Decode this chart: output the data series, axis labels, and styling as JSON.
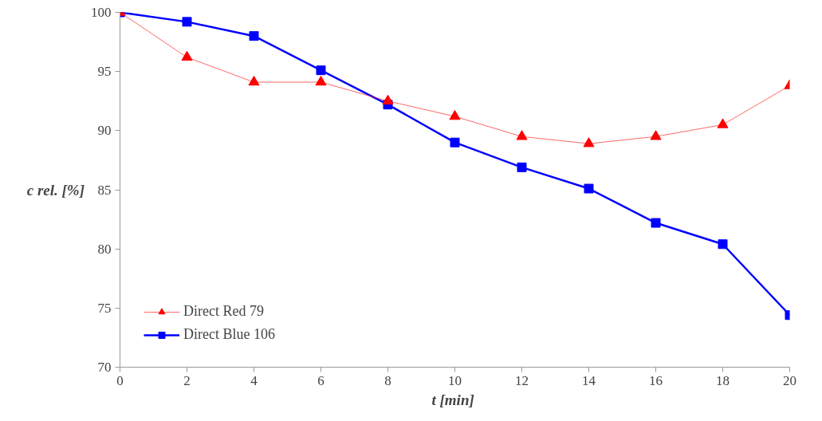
{
  "chart_data": {
    "type": "line",
    "xlabel": "t  [min]",
    "ylabel": "c rel. [%]",
    "x": [
      0,
      2,
      4,
      6,
      8,
      10,
      12,
      14,
      16,
      18,
      20
    ],
    "series": [
      {
        "name": "Direct Red 79",
        "color": "#ff0000",
        "marker": "triangle",
        "values": [
          100,
          96.2,
          94.1,
          94.1,
          92.5,
          91.2,
          89.5,
          88.9,
          89.5,
          90.5,
          93.8
        ]
      },
      {
        "name": "Direct Blue 106",
        "color": "#0000ff",
        "marker": "square",
        "values": [
          100,
          99.2,
          98.0,
          95.1,
          92.2,
          89.0,
          86.9,
          85.1,
          82.2,
          80.4,
          74.4
        ]
      }
    ],
    "xlim": [
      0,
      20
    ],
    "xticks": [
      0,
      2,
      4,
      6,
      8,
      10,
      12,
      14,
      16,
      18,
      20
    ],
    "ylim": [
      70,
      100
    ],
    "yticks": [
      70,
      75,
      80,
      85,
      90,
      95,
      100
    ],
    "grid": false,
    "legend": "bottom left",
    "line_style": "solid"
  }
}
